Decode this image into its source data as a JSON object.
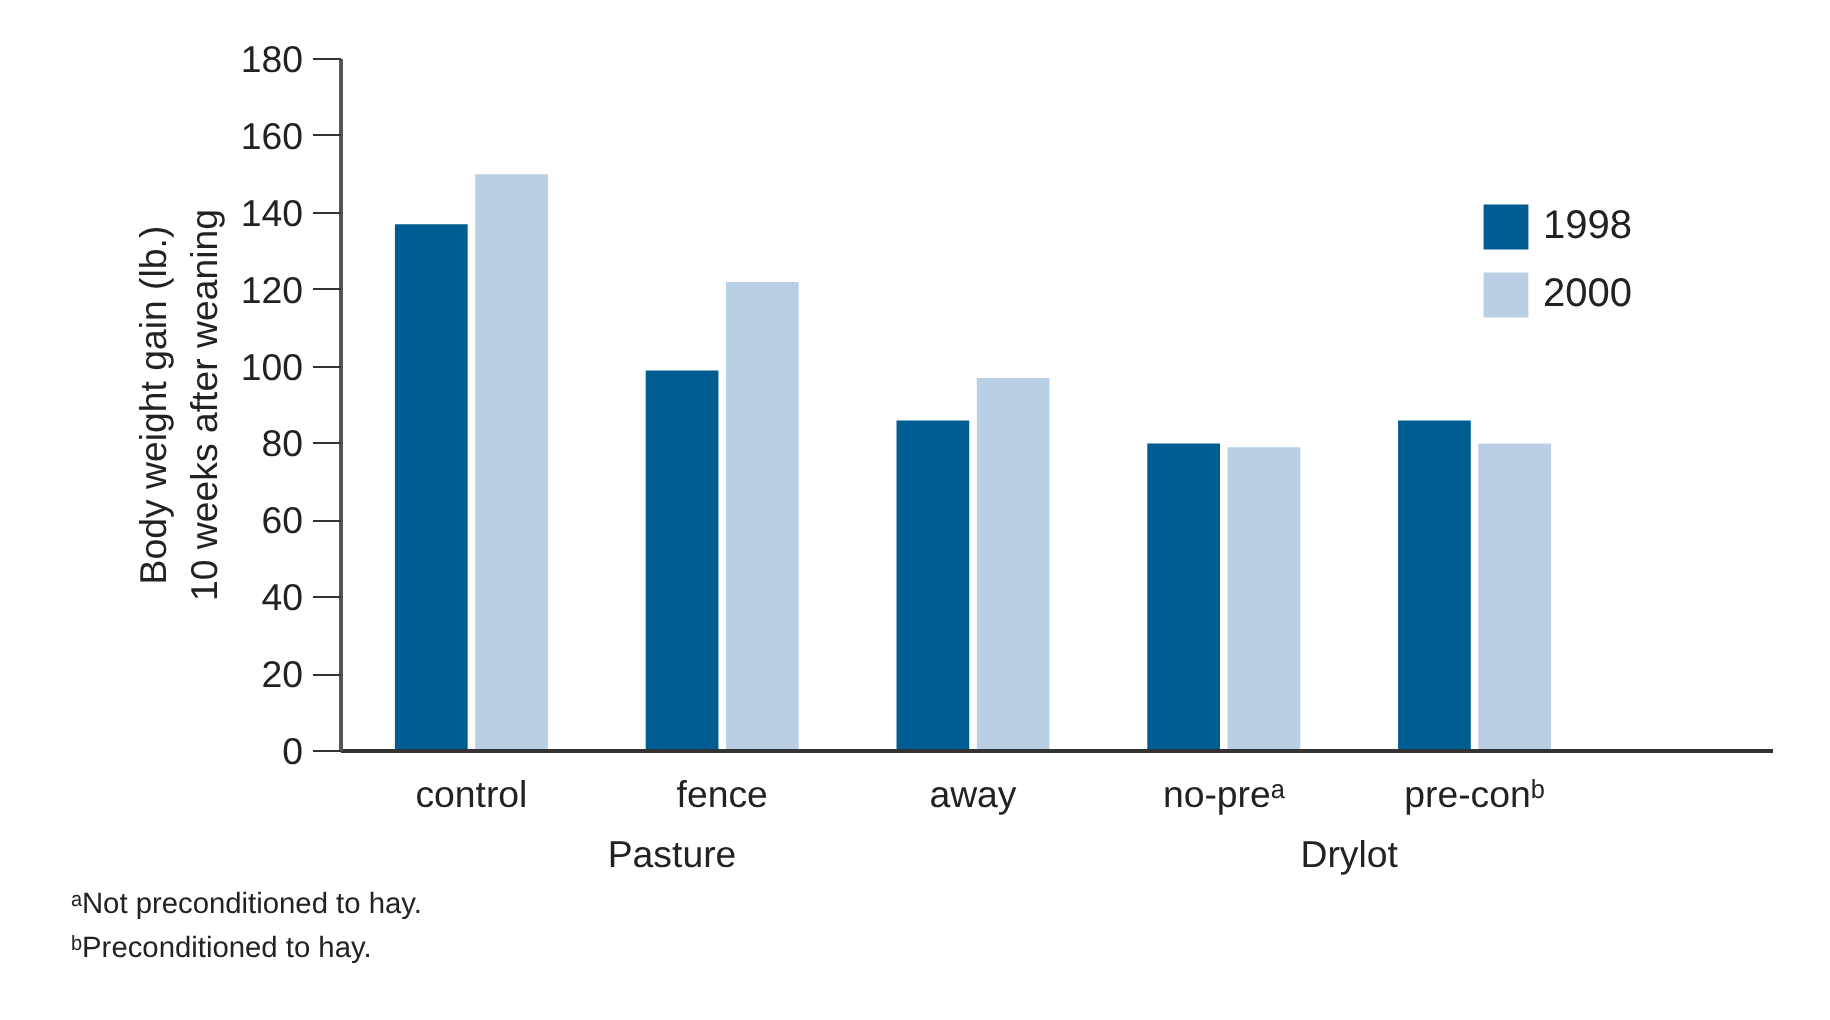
{
  "chart_data": {
    "type": "bar",
    "ylabel": "Body weight gain (lb.)\n10 weeks after weaning",
    "categories": [
      "control",
      "fence",
      "away",
      "no-preᵃ",
      "pre-conᵇ"
    ],
    "series": [
      {
        "name": "1998",
        "color": "#005d92",
        "values": [
          137,
          99,
          86,
          80,
          86
        ]
      },
      {
        "name": "2000",
        "color": "#b8cfe4",
        "values": [
          150,
          122,
          97,
          79,
          80
        ]
      }
    ],
    "ylim": [
      0,
      180
    ],
    "yticks": [
      0,
      20,
      40,
      60,
      80,
      100,
      120,
      140,
      160,
      180
    ],
    "legend": "top right",
    "grid": false,
    "annotations": [
      "Pasture",
      "Drylot",
      "ᵃNot preconditioned to hay.",
      "ᵇPreconditioned to hay."
    ]
  }
}
